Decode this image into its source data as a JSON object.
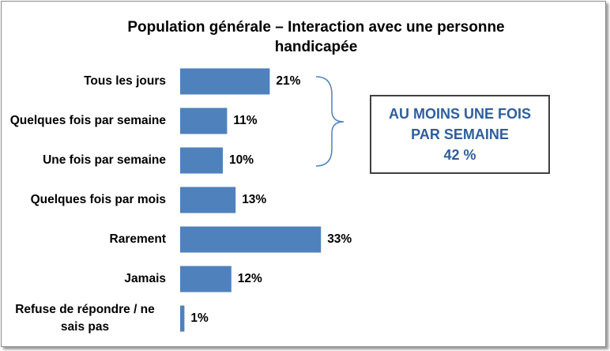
{
  "chart_data": {
    "type": "hbar",
    "title": "Population générale – Interaction avec une personne handicapée",
    "categories": [
      "Tous les jours",
      "Quelques fois par semaine",
      "Une fois par semaine",
      "Quelques fois par mois",
      "Rarement",
      "Jamais",
      "Refuse de répondre / ne sais pas"
    ],
    "values": [
      21,
      11,
      10,
      13,
      33,
      12,
      1
    ],
    "value_labels": [
      "21%",
      "11%",
      "10%",
      "13%",
      "33%",
      "12%",
      "1%"
    ],
    "color": "#4f81bd",
    "annotation": [
      "AU MOINS UNE FOIS PAR SEMAINE",
      "42 %"
    ]
  }
}
